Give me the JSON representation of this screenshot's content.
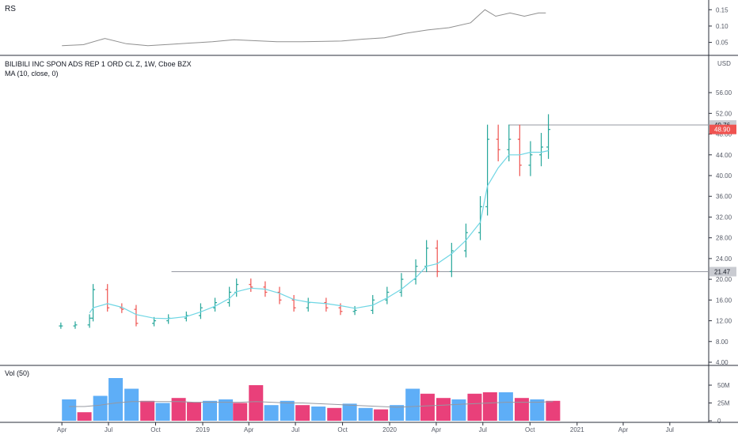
{
  "colors": {
    "up": "#26a69a",
    "down": "#ef5350",
    "vol_up": "#5eaef7",
    "vol_down": "#e9407a",
    "ma": "#6fd6e4",
    "rs": "#8f8f8f",
    "hline": "#9598a1",
    "last_tag": "#ef5350"
  },
  "chart_data": [
    {
      "type": "line",
      "title": "RS",
      "x": [
        "2018-04-01",
        "2018-05-13",
        "2018-06-24",
        "2018-08-05",
        "2018-09-16",
        "2018-10-28",
        "2018-12-09",
        "2019-01-20",
        "2019-03-03",
        "2019-04-14",
        "2019-05-26",
        "2019-07-07",
        "2019-08-18",
        "2019-09-29",
        "2019-11-10",
        "2019-12-22",
        "2020-02-02",
        "2020-03-15",
        "2020-04-26",
        "2020-06-07",
        "2020-07-05",
        "2020-07-26",
        "2020-08-23",
        "2020-09-20",
        "2020-10-18",
        "2020-11-01"
      ],
      "series": [
        {
          "values": [
            0.04,
            0.043,
            0.062,
            0.046,
            0.04,
            0.044,
            0.048,
            0.052,
            0.058,
            0.055,
            0.052,
            0.052,
            0.053,
            0.054,
            0.06,
            0.064,
            0.078,
            0.088,
            0.095,
            0.11,
            0.15,
            0.13,
            0.14,
            0.13,
            0.14,
            0.14
          ]
        }
      ],
      "yticks": [
        "0.15",
        "0.10",
        "0.05"
      ],
      "ylim": [
        0.02,
        0.17
      ]
    },
    {
      "type": "line",
      "title": "BILIBILI INC SPON ADS REP 1 ORD CL Z, 1W, Cboe BZX",
      "indicator_label": "MA (10, close, 0)",
      "ylabel": "USD",
      "yticks": [
        "56.00",
        "52.00",
        "48.00",
        "44.00",
        "40.00",
        "36.00",
        "32.00",
        "28.00",
        "24.00",
        "20.00",
        "16.00",
        "12.00",
        "8.00",
        "4.00"
      ],
      "ylim": [
        4,
        58
      ],
      "x": [
        "2018-03-30",
        "2018-04-27",
        "2018-05-25",
        "2018-06-01",
        "2018-06-29",
        "2018-07-27",
        "2018-08-24",
        "2018-09-28",
        "2018-10-26",
        "2018-11-30",
        "2018-12-28",
        "2019-01-25",
        "2019-02-22",
        "2019-03-08",
        "2019-04-05",
        "2019-05-03",
        "2019-05-31",
        "2019-06-28",
        "2019-07-26",
        "2019-08-30",
        "2019-09-27",
        "2019-10-25",
        "2019-11-29",
        "2019-12-27",
        "2020-01-24",
        "2020-02-21",
        "2020-03-13",
        "2020-04-03",
        "2020-05-01",
        "2020-05-29",
        "2020-06-26",
        "2020-07-10",
        "2020-07-31",
        "2020-08-21",
        "2020-09-11",
        "2020-10-02",
        "2020-10-23",
        "2020-11-06"
      ],
      "series": [
        {
          "name": "Price",
          "values": [
            11.0,
            11.2,
            12.5,
            18.0,
            14.5,
            14.2,
            11.5,
            12.0,
            12.5,
            13.0,
            14.5,
            15.5,
            17.5,
            19.0,
            18.5,
            17.5,
            16.0,
            14.5,
            15.5,
            14.5,
            13.8,
            14.0,
            16.0,
            17.5,
            20.0,
            22.5,
            26.0,
            21.5,
            25.5,
            29.0,
            34.0,
            47.0,
            45.0,
            47.0,
            42.0,
            44.0,
            45.5,
            48.9
          ]
        },
        {
          "name": "MA",
          "values": [
            null,
            null,
            13.5,
            14.5,
            15.3,
            14.6,
            13.2,
            12.5,
            12.4,
            12.8,
            13.7,
            14.8,
            16.3,
            17.6,
            18.3,
            18.1,
            17.3,
            16.1,
            15.6,
            15.3,
            14.9,
            14.4,
            15.0,
            16.4,
            18.1,
            20.3,
            22.5,
            23.0,
            24.9,
            27.5,
            31.0,
            38.0,
            41.5,
            44.0,
            44.0,
            44.5,
            44.5,
            44.8
          ]
        }
      ],
      "horizontal_lines": [
        49.76,
        21.47
      ],
      "price_labels": [
        "49.76",
        "48.90",
        "21.47"
      ]
    },
    {
      "type": "bar",
      "title": "Vol (50)",
      "yticks": [
        "50M",
        "25M",
        "0"
      ],
      "ylim": [
        0,
        60
      ],
      "categories": [
        "2018-04",
        "2018-05",
        "2018-06",
        "2018-07",
        "2018-08",
        "2018-09",
        "2018-10",
        "2018-11",
        "2018-12",
        "2019-01",
        "2019-02",
        "2019-03",
        "2019-04",
        "2019-05",
        "2019-06",
        "2019-07",
        "2019-08",
        "2019-09",
        "2019-10",
        "2019-11",
        "2019-12",
        "2020-01",
        "2020-02",
        "2020-03",
        "2020-04",
        "2020-05",
        "2020-06",
        "2020-07",
        "2020-08",
        "2020-09",
        "2020-10",
        "2020-11"
      ],
      "series": [
        {
          "name": "Volume",
          "values": [
            30,
            12,
            35,
            60,
            45,
            28,
            25,
            32,
            26,
            28,
            30,
            25,
            50,
            22,
            28,
            22,
            20,
            18,
            24,
            18,
            16,
            22,
            45,
            38,
            32,
            30,
            38,
            40,
            40,
            32,
            30,
            28
          ]
        },
        {
          "name": "Volume MA",
          "values": [
            20,
            20,
            22,
            25,
            27,
            27,
            27,
            27,
            26,
            26,
            26,
            26,
            27,
            26,
            25,
            25,
            24,
            23,
            22,
            21,
            20,
            19,
            20,
            21,
            22,
            23,
            24,
            25,
            26,
            26,
            26,
            27
          ]
        }
      ],
      "up_down": [
        "up",
        "down",
        "up",
        "up",
        "up",
        "down",
        "up",
        "down",
        "down",
        "up",
        "up",
        "down",
        "down",
        "up",
        "up",
        "down",
        "up",
        "down",
        "up",
        "up",
        "down",
        "up",
        "up",
        "down",
        "down",
        "up",
        "down",
        "down",
        "up",
        "down",
        "up",
        "down"
      ]
    }
  ],
  "x_axis": {
    "labels": [
      "Apr",
      "Jul",
      "Oct",
      "2019",
      "Apr",
      "Jul",
      "Oct",
      "2020",
      "Apr",
      "Jul",
      "Oct",
      "2021",
      "Apr",
      "Jul"
    ]
  }
}
